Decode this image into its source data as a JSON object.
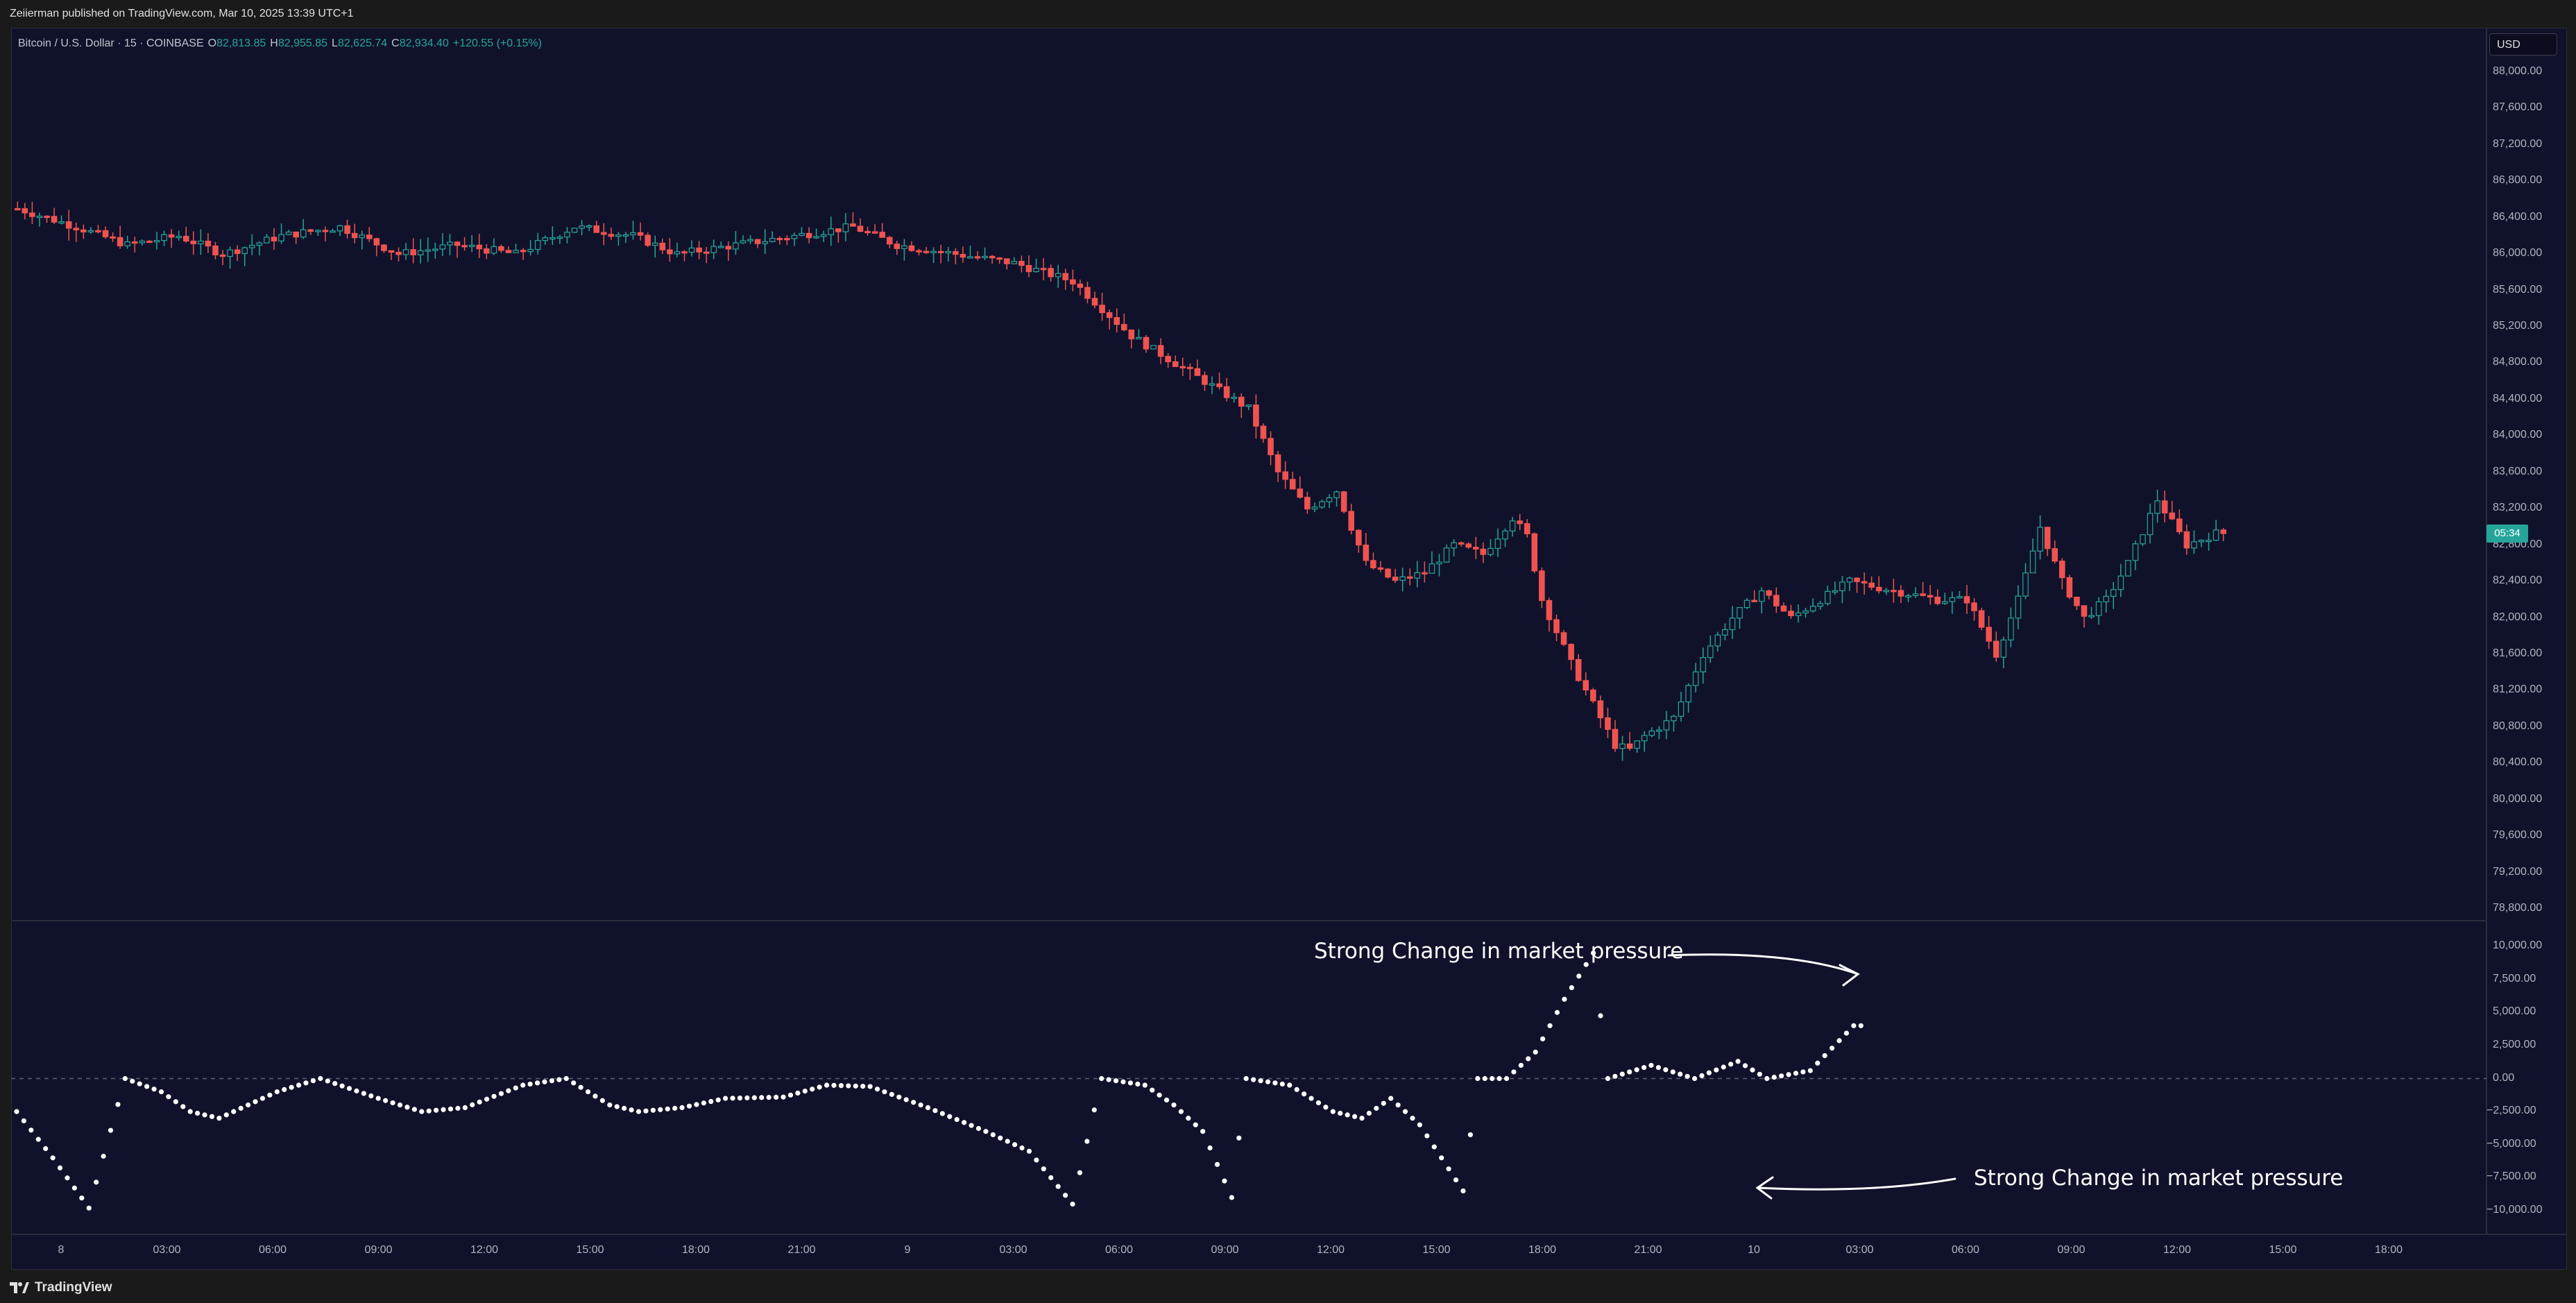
{
  "header": {
    "publish_text": "Zeiierman published on TradingView.com, Mar 10, 2025 13:39 UTC+1"
  },
  "legend": {
    "symbol": "Bitcoin / U.S. Dollar · 15 · COINBASE",
    "o_label": "O",
    "o_value": "82,813.85",
    "h_label": "H",
    "h_value": "82,955.85",
    "l_label": "L",
    "l_value": "82,625.74",
    "c_label": "C",
    "c_value": "82,934.40",
    "change": "+120.55 (+0.15%)"
  },
  "currency": "USD",
  "price_axis": {
    "labels": [
      "88,000.00",
      "87,600.00",
      "87,200.00",
      "86,800.00",
      "86,400.00",
      "86,000.00",
      "85,600.00",
      "85,200.00",
      "84,800.00",
      "84,400.00",
      "84,000.00",
      "83,600.00",
      "83,200.00",
      "82,800.00",
      "82,400.00",
      "82,000.00",
      "81,600.00",
      "81,200.00",
      "80,800.00",
      "80,400.00",
      "80,000.00",
      "79,600.00",
      "79,200.00",
      "78,800.00"
    ],
    "values": [
      88000,
      87600,
      87200,
      86800,
      86400,
      86000,
      85600,
      85200,
      84800,
      84400,
      84000,
      83600,
      83200,
      82800,
      82400,
      82000,
      81600,
      81200,
      80800,
      80400,
      80000,
      79600,
      79200,
      78800
    ],
    "current_tag": "05:34",
    "current_price": 82934.4,
    "up_color": "#26a69a",
    "down_color": "#ef5350"
  },
  "indicator_axis": {
    "labels": [
      "10,000.00",
      "7,500.00",
      "5,000.00",
      "2,500.00",
      "0.00",
      "−2,500.00",
      "−5,000.00",
      "−7,500.00",
      "−10,000.00"
    ],
    "values": [
      10000,
      7500,
      5000,
      2500,
      0,
      -2500,
      -5000,
      -7500,
      -10000
    ]
  },
  "time_axis": {
    "labels": [
      "8",
      "03:00",
      "06:00",
      "09:00",
      "12:00",
      "15:00",
      "18:00",
      "21:00",
      "9",
      "03:00",
      "06:00",
      "09:00",
      "12:00",
      "15:00",
      "18:00",
      "21:00",
      "10",
      "03:00",
      "06:00",
      "09:00",
      "12:00",
      "15:00",
      "18:00"
    ]
  },
  "annotations": {
    "top": "Strong Change in market pressure",
    "bottom": "Strong Change in market pressure"
  },
  "footer": {
    "brand": "TradingView",
    "logo_icon": "tradingview-logo-icon"
  },
  "chart_data": [
    {
      "type": "candlestick",
      "title": "Bitcoin / U.S. Dollar · 15 · COINBASE",
      "ylim": [
        78800,
        88000
      ],
      "anchors": [
        [
          0,
          86500
        ],
        [
          8,
          86300
        ],
        [
          15,
          86100
        ],
        [
          22,
          86200
        ],
        [
          28,
          86000
        ],
        [
          36,
          86200
        ],
        [
          44,
          86300
        ],
        [
          52,
          86000
        ],
        [
          60,
          86100
        ],
        [
          68,
          86000
        ],
        [
          76,
          86300
        ],
        [
          84,
          86200
        ],
        [
          90,
          86000
        ],
        [
          98,
          86100
        ],
        [
          106,
          86200
        ],
        [
          114,
          86300
        ],
        [
          120,
          86100
        ],
        [
          128,
          86000
        ],
        [
          136,
          85900
        ],
        [
          144,
          85700
        ],
        [
          152,
          85100
        ],
        [
          160,
          84700
        ],
        [
          168,
          84300
        ],
        [
          172,
          83600
        ],
        [
          176,
          83200
        ],
        [
          180,
          83400
        ],
        [
          184,
          82600
        ],
        [
          188,
          82400
        ],
        [
          192,
          82500
        ],
        [
          196,
          82800
        ],
        [
          200,
          82700
        ],
        [
          204,
          83100
        ],
        [
          206,
          82900
        ],
        [
          208,
          82200
        ],
        [
          212,
          81500
        ],
        [
          216,
          80900
        ],
        [
          218,
          80600
        ],
        [
          220,
          80550
        ],
        [
          222,
          80700
        ],
        [
          226,
          80900
        ],
        [
          230,
          81600
        ],
        [
          234,
          82000
        ],
        [
          238,
          82300
        ],
        [
          242,
          82000
        ],
        [
          246,
          82200
        ],
        [
          250,
          82400
        ],
        [
          256,
          82300
        ],
        [
          262,
          82200
        ],
        [
          266,
          82200
        ],
        [
          270,
          81600
        ],
        [
          273,
          82200
        ],
        [
          276,
          83000
        ],
        [
          279,
          82400
        ],
        [
          282,
          82000
        ],
        [
          285,
          82200
        ],
        [
          288,
          82600
        ],
        [
          292,
          83300
        ],
        [
          296,
          82800
        ],
        [
          300,
          82930
        ]
      ],
      "count": 302
    },
    {
      "type": "scatter",
      "title": "",
      "ylim": [
        -10000,
        10000
      ],
      "gaps": [
        [
          28,
          29
        ],
        [
          148,
          149
        ],
        [
          166,
          167
        ],
        [
          188,
          189
        ],
        [
          208,
          209
        ],
        [
          232,
          233
        ]
      ],
      "anchors": [
        [
          0,
          -2500
        ],
        [
          5,
          -6000
        ],
        [
          10,
          -9800
        ],
        [
          15,
          0
        ],
        [
          20,
          -1000
        ],
        [
          24,
          -2500
        ],
        [
          28,
          -3000
        ],
        [
          36,
          -1000
        ],
        [
          42,
          0
        ],
        [
          50,
          -1500
        ],
        [
          56,
          -2500
        ],
        [
          62,
          -2200
        ],
        [
          70,
          -500
        ],
        [
          76,
          0
        ],
        [
          82,
          -2000
        ],
        [
          86,
          -2500
        ],
        [
          92,
          -2200
        ],
        [
          98,
          -1500
        ],
        [
          106,
          -1400
        ],
        [
          112,
          -500
        ],
        [
          118,
          -600
        ],
        [
          126,
          -2200
        ],
        [
          134,
          -4000
        ],
        [
          140,
          -5500
        ],
        [
          146,
          -9500
        ],
        [
          150,
          0
        ],
        [
          156,
          -500
        ],
        [
          160,
          -2000
        ],
        [
          164,
          -4000
        ],
        [
          168,
          -9000
        ],
        [
          170,
          0
        ],
        [
          176,
          -500
        ],
        [
          182,
          -2500
        ],
        [
          186,
          -3000
        ],
        [
          190,
          -1500
        ],
        [
          194,
          -3500
        ],
        [
          200,
          -8500
        ],
        [
          202,
          0
        ],
        [
          206,
          0
        ],
        [
          210,
          2000
        ],
        [
          214,
          6000
        ],
        [
          218,
          9500
        ],
        [
          220,
          0
        ],
        [
          226,
          1000
        ],
        [
          232,
          0
        ],
        [
          238,
          1300
        ],
        [
          242,
          0
        ],
        [
          248,
          600
        ],
        [
          254,
          4000
        ]
      ],
      "count": 256
    }
  ]
}
